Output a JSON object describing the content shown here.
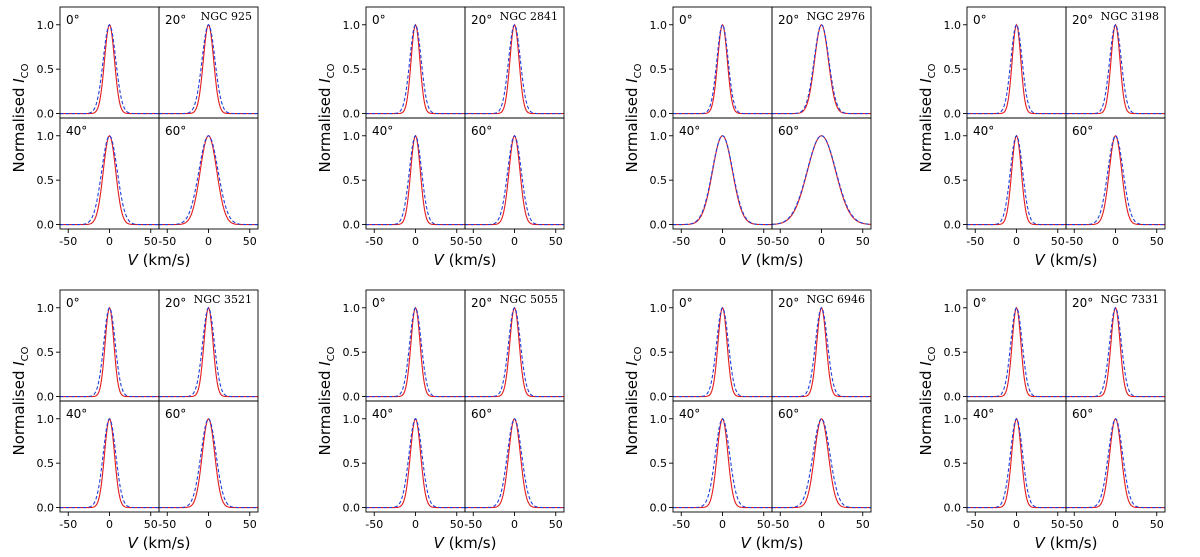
{
  "figure": {
    "ylabel_text": "Normalised ",
    "ylabel_symbol": "I",
    "ylabel_subscript": "CO",
    "xlabel_symbol": "V",
    "xlabel_unit": " (km/s)",
    "x_ticks": [
      "-50",
      "0",
      "50"
    ],
    "x_tick_values": [
      -50,
      0,
      50
    ],
    "y_ticks": [
      "0.0",
      "0.5",
      "1.0"
    ],
    "y_tick_values": [
      0.0,
      0.5,
      1.0
    ],
    "colors": {
      "solid": "#e41a1c",
      "dashed": "#1f3fe0",
      "axes": "#000000"
    }
  },
  "chart_data": [
    {
      "galaxy": "NGC 925",
      "type": "line",
      "xlim": [
        -60,
        60
      ],
      "ylim": [
        -0.05,
        1.2
      ],
      "subpanels": [
        {
          "inclination": "0°",
          "solid_sigma": 6.0,
          "dashed_sigma": 7.6
        },
        {
          "inclination": "20°",
          "solid_sigma": 6.2,
          "dashed_sigma": 7.8
        },
        {
          "inclination": "40°",
          "solid_sigma": 7.5,
          "dashed_sigma": 9.4
        },
        {
          "inclination": "60°",
          "solid_sigma": 10.0,
          "dashed_sigma": 11.6
        }
      ]
    },
    {
      "galaxy": "NGC 2841",
      "type": "line",
      "xlim": [
        -60,
        60
      ],
      "ylim": [
        -0.05,
        1.2
      ],
      "subpanels": [
        {
          "inclination": "0°",
          "solid_sigma": 5.3,
          "dashed_sigma": 6.9
        },
        {
          "inclination": "20°",
          "solid_sigma": 5.5,
          "dashed_sigma": 7.1
        },
        {
          "inclination": "40°",
          "solid_sigma": 5.8,
          "dashed_sigma": 7.4
        },
        {
          "inclination": "60°",
          "solid_sigma": 6.6,
          "dashed_sigma": 8.2
        }
      ]
    },
    {
      "galaxy": "NGC 2976",
      "type": "line",
      "xlim": [
        -60,
        60
      ],
      "ylim": [
        -0.05,
        1.2
      ],
      "subpanels": [
        {
          "inclination": "0°",
          "solid_sigma": 5.8,
          "dashed_sigma": 6.8
        },
        {
          "inclination": "20°",
          "solid_sigma": 8.3,
          "dashed_sigma": 8.9
        },
        {
          "inclination": "40°",
          "solid_sigma": 12.0,
          "dashed_sigma": 12.4
        },
        {
          "inclination": "60°",
          "solid_sigma": 17.0,
          "dashed_sigma": 17.4
        }
      ]
    },
    {
      "galaxy": "NGC 3198",
      "type": "line",
      "xlim": [
        -60,
        60
      ],
      "ylim": [
        -0.05,
        1.2
      ],
      "subpanels": [
        {
          "inclination": "0°",
          "solid_sigma": 5.2,
          "dashed_sigma": 6.8
        },
        {
          "inclination": "20°",
          "solid_sigma": 5.4,
          "dashed_sigma": 7.0
        },
        {
          "inclination": "40°",
          "solid_sigma": 5.8,
          "dashed_sigma": 7.4
        },
        {
          "inclination": "60°",
          "solid_sigma": 7.5,
          "dashed_sigma": 9.2
        }
      ]
    },
    {
      "galaxy": "NGC 3521",
      "type": "line",
      "xlim": [
        -60,
        60
      ],
      "ylim": [
        -0.05,
        1.2
      ],
      "subpanels": [
        {
          "inclination": "0°",
          "solid_sigma": 5.3,
          "dashed_sigma": 6.9
        },
        {
          "inclination": "20°",
          "solid_sigma": 5.5,
          "dashed_sigma": 7.1
        },
        {
          "inclination": "40°",
          "solid_sigma": 6.0,
          "dashed_sigma": 7.6
        },
        {
          "inclination": "60°",
          "solid_sigma": 7.5,
          "dashed_sigma": 9.1
        }
      ]
    },
    {
      "galaxy": "NGC 5055",
      "type": "line",
      "xlim": [
        -60,
        60
      ],
      "ylim": [
        -0.05,
        1.2
      ],
      "subpanels": [
        {
          "inclination": "0°",
          "solid_sigma": 5.5,
          "dashed_sigma": 7.0
        },
        {
          "inclination": "20°",
          "solid_sigma": 5.7,
          "dashed_sigma": 7.2
        },
        {
          "inclination": "40°",
          "solid_sigma": 6.2,
          "dashed_sigma": 7.8
        },
        {
          "inclination": "60°",
          "solid_sigma": 7.0,
          "dashed_sigma": 8.6
        }
      ]
    },
    {
      "galaxy": "NGC 6946",
      "type": "line",
      "xlim": [
        -60,
        60
      ],
      "ylim": [
        -0.05,
        1.2
      ],
      "subpanels": [
        {
          "inclination": "0°",
          "solid_sigma": 5.5,
          "dashed_sigma": 7.1
        },
        {
          "inclination": "20°",
          "solid_sigma": 5.7,
          "dashed_sigma": 7.3
        },
        {
          "inclination": "40°",
          "solid_sigma": 6.5,
          "dashed_sigma": 8.6
        },
        {
          "inclination": "60°",
          "solid_sigma": 8.3,
          "dashed_sigma": 10.2
        }
      ]
    },
    {
      "galaxy": "NGC 7331",
      "type": "line",
      "xlim": [
        -60,
        60
      ],
      "ylim": [
        -0.05,
        1.2
      ],
      "subpanels": [
        {
          "inclination": "0°",
          "solid_sigma": 5.3,
          "dashed_sigma": 6.9
        },
        {
          "inclination": "20°",
          "solid_sigma": 5.5,
          "dashed_sigma": 7.1
        },
        {
          "inclination": "40°",
          "solid_sigma": 5.8,
          "dashed_sigma": 7.4
        },
        {
          "inclination": "60°",
          "solid_sigma": 7.0,
          "dashed_sigma": 8.6
        }
      ]
    }
  ]
}
